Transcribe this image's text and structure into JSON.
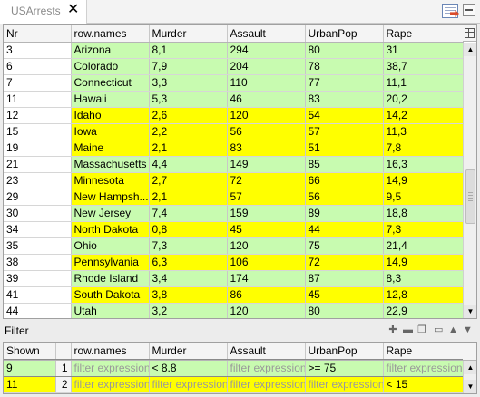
{
  "window": {
    "tab_title": "USArrests",
    "tab_close": "✕"
  },
  "main_table": {
    "columns": [
      "Nr",
      "row.names",
      "Murder",
      "Assault",
      "UrbanPop",
      "Rape"
    ],
    "rows": [
      {
        "nr": "3",
        "name": "Arizona",
        "murder": "8,1",
        "assault": "294",
        "urbanpop": "80",
        "rape": "31",
        "color": "green"
      },
      {
        "nr": "6",
        "name": "Colorado",
        "murder": "7,9",
        "assault": "204",
        "urbanpop": "78",
        "rape": "38,7",
        "color": "green"
      },
      {
        "nr": "7",
        "name": "Connecticut",
        "murder": "3,3",
        "assault": "110",
        "urbanpop": "77",
        "rape": "11,1",
        "color": "green"
      },
      {
        "nr": "11",
        "name": "Hawaii",
        "murder": "5,3",
        "assault": "46",
        "urbanpop": "83",
        "rape": "20,2",
        "color": "green"
      },
      {
        "nr": "12",
        "name": "Idaho",
        "murder": "2,6",
        "assault": "120",
        "urbanpop": "54",
        "rape": "14,2",
        "color": "yellow"
      },
      {
        "nr": "15",
        "name": "Iowa",
        "murder": "2,2",
        "assault": "56",
        "urbanpop": "57",
        "rape": "11,3",
        "color": "yellow"
      },
      {
        "nr": "19",
        "name": "Maine",
        "murder": "2,1",
        "assault": "83",
        "urbanpop": "51",
        "rape": "7,8",
        "color": "yellow"
      },
      {
        "nr": "21",
        "name": "Massachusetts",
        "murder": "4,4",
        "assault": "149",
        "urbanpop": "85",
        "rape": "16,3",
        "color": "green"
      },
      {
        "nr": "23",
        "name": "Minnesota",
        "murder": "2,7",
        "assault": "72",
        "urbanpop": "66",
        "rape": "14,9",
        "color": "yellow"
      },
      {
        "nr": "29",
        "name": "New Hampsh...",
        "murder": "2,1",
        "assault": "57",
        "urbanpop": "56",
        "rape": "9,5",
        "color": "yellow"
      },
      {
        "nr": "30",
        "name": "New Jersey",
        "murder": "7,4",
        "assault": "159",
        "urbanpop": "89",
        "rape": "18,8",
        "color": "green"
      },
      {
        "nr": "34",
        "name": "North Dakota",
        "murder": "0,8",
        "assault": "45",
        "urbanpop": "44",
        "rape": "7,3",
        "color": "yellow"
      },
      {
        "nr": "35",
        "name": "Ohio",
        "murder": "7,3",
        "assault": "120",
        "urbanpop": "75",
        "rape": "21,4",
        "color": "green"
      },
      {
        "nr": "38",
        "name": "Pennsylvania",
        "murder": "6,3",
        "assault": "106",
        "urbanpop": "72",
        "rape": "14,9",
        "color": "yellow"
      },
      {
        "nr": "39",
        "name": "Rhode Island",
        "murder": "3,4",
        "assault": "174",
        "urbanpop": "87",
        "rape": "8,3",
        "color": "green"
      },
      {
        "nr": "41",
        "name": "South Dakota",
        "murder": "3,8",
        "assault": "86",
        "urbanpop": "45",
        "rape": "12,8",
        "color": "yellow"
      },
      {
        "nr": "44",
        "name": "Utah",
        "murder": "3,2",
        "assault": "120",
        "urbanpop": "80",
        "rape": "22,9",
        "color": "green"
      }
    ]
  },
  "filter": {
    "label": "Filter",
    "columns": [
      "Shown",
      "",
      "row.names",
      "Murder",
      "Assault",
      "UrbanPop",
      "Rape"
    ],
    "rows": [
      {
        "shown": "9",
        "index": "1",
        "row_names": "filter expression",
        "murder": "< 8.8",
        "assault": "filter expression",
        "urbanpop": ">= 75",
        "rape": "filter expression",
        "color": "green",
        "placeholder": {
          "row_names": true,
          "murder": false,
          "assault": true,
          "urbanpop": false,
          "rape": true
        }
      },
      {
        "shown": "11",
        "index": "2",
        "row_names": "filter expression",
        "murder": "filter expression",
        "assault": "filter expression",
        "urbanpop": "filter expression",
        "rape": "< 15",
        "color": "yellow",
        "placeholder": {
          "row_names": true,
          "murder": true,
          "assault": true,
          "urbanpop": true,
          "rape": false
        }
      }
    ]
  },
  "colors": {
    "green": "#c8fbb0",
    "yellow": "#ffff00"
  }
}
